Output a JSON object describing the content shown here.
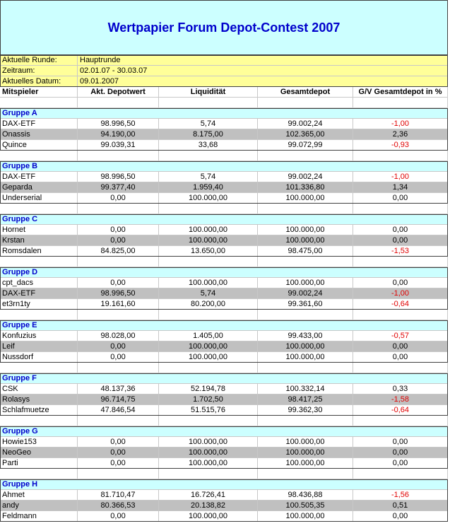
{
  "header": {
    "title": "Wertpapier Forum Depot-Contest 2007"
  },
  "info": [
    {
      "label": "Aktuelle Runde:",
      "value": "Hauptrunde"
    },
    {
      "label": "Zeitraum:",
      "value": "02.01.07 - 30.03.07"
    },
    {
      "label": "Aktuelles Datum:",
      "value": "09.01.2007"
    }
  ],
  "columns": [
    "Mitspieler",
    "Akt. Depotwert",
    "Liquidität",
    "Gesamtdepot",
    "G/V Gesamtdepot in %"
  ],
  "groups": [
    {
      "name": "Gruppe A",
      "rows": [
        [
          "DAX-ETF",
          "98.996,50",
          "5,74",
          "99.002,24",
          "-1,00"
        ],
        [
          "Onassis",
          "94.190,00",
          "8.175,00",
          "102.365,00",
          "2,36"
        ],
        [
          "Quince",
          "99.039,31",
          "33,68",
          "99.072,99",
          "-0,93"
        ]
      ]
    },
    {
      "name": "Gruppe B",
      "rows": [
        [
          "DAX-ETF",
          "98.996,50",
          "5,74",
          "99.002,24",
          "-1,00"
        ],
        [
          "Geparda",
          "99.377,40",
          "1.959,40",
          "101.336,80",
          "1,34"
        ],
        [
          "Underserial",
          "0,00",
          "100.000,00",
          "100.000,00",
          "0,00"
        ]
      ]
    },
    {
      "name": "Gruppe C",
      "rows": [
        [
          "Hornet",
          "0,00",
          "100.000,00",
          "100.000,00",
          "0,00"
        ],
        [
          "Krstan",
          "0,00",
          "100.000,00",
          "100.000,00",
          "0,00"
        ],
        [
          "Romsdalen",
          "84.825,00",
          "13.650,00",
          "98.475,00",
          "-1,53"
        ]
      ]
    },
    {
      "name": "Gruppe D",
      "rows": [
        [
          "cpt_dacs",
          "0,00",
          "100.000,00",
          "100.000,00",
          "0,00"
        ],
        [
          "DAX-ETF",
          "98.996,50",
          "5,74",
          "99.002,24",
          "-1,00"
        ],
        [
          "et3rn1ty",
          "19.161,60",
          "80.200,00",
          "99.361,60",
          "-0,64"
        ]
      ]
    },
    {
      "name": "Gruppe E",
      "rows": [
        [
          "Konfuzius",
          "98.028,00",
          "1.405,00",
          "99.433,00",
          "-0,57"
        ],
        [
          "Leif",
          "0,00",
          "100.000,00",
          "100.000,00",
          "0,00"
        ],
        [
          "Nussdorf",
          "0,00",
          "100.000,00",
          "100.000,00",
          "0,00"
        ]
      ]
    },
    {
      "name": "Gruppe F",
      "rows": [
        [
          "CSK",
          "48.137,36",
          "52.194,78",
          "100.332,14",
          "0,33"
        ],
        [
          "Rolasys",
          "96.714,75",
          "1.702,50",
          "98.417,25",
          "-1,58"
        ],
        [
          "Schlafmuetze",
          "47.846,54",
          "51.515,76",
          "99.362,30",
          "-0,64"
        ]
      ]
    },
    {
      "name": "Gruppe G",
      "rows": [
        [
          "Howie153",
          "0,00",
          "100.000,00",
          "100.000,00",
          "0,00"
        ],
        [
          "NeoGeo",
          "0,00",
          "100.000,00",
          "100.000,00",
          "0,00"
        ],
        [
          "Parti",
          "0,00",
          "100.000,00",
          "100.000,00",
          "0,00"
        ]
      ]
    },
    {
      "name": "Gruppe H",
      "rows": [
        [
          "Ahmet",
          "81.710,47",
          "16.726,41",
          "98.436,88",
          "-1,56"
        ],
        [
          "andy",
          "80.366,53",
          "20.138,82",
          "100.505,35",
          "0,51"
        ],
        [
          "Feldmann",
          "0,00",
          "100.000,00",
          "100.000,00",
          "0,00"
        ]
      ]
    }
  ]
}
